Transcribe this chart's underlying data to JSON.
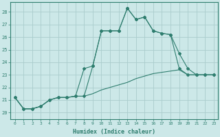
{
  "xlabel": "Humidex (Indice chaleur)",
  "xlim": [
    -0.5,
    23.5
  ],
  "ylim": [
    19.5,
    28.8
  ],
  "xticks": [
    0,
    1,
    2,
    3,
    4,
    5,
    6,
    7,
    8,
    9,
    10,
    11,
    12,
    13,
    14,
    15,
    16,
    17,
    18,
    19,
    20,
    21,
    22,
    23
  ],
  "yticks": [
    20,
    21,
    22,
    23,
    24,
    25,
    26,
    27,
    28
  ],
  "background_color": "#cce8e8",
  "grid_color": "#aacccc",
  "line_color": "#2e7d6e",
  "line1_y": [
    21.2,
    20.3,
    20.3,
    20.5,
    21.0,
    21.2,
    21.2,
    21.3,
    21.3,
    23.7,
    26.5,
    26.5,
    26.5,
    28.3,
    27.4,
    27.6,
    26.5,
    26.3,
    26.2,
    24.7,
    23.5,
    23.0,
    23.0,
    23.0
  ],
  "line2_y": [
    21.2,
    20.3,
    20.3,
    20.5,
    21.0,
    21.2,
    21.2,
    21.3,
    23.5,
    23.7,
    26.5,
    26.5,
    26.5,
    28.3,
    27.4,
    27.6,
    26.5,
    26.3,
    26.2,
    23.5,
    23.0,
    23.0,
    23.0,
    23.0
  ],
  "line3_y": [
    21.2,
    20.3,
    20.3,
    20.5,
    21.0,
    21.2,
    21.2,
    21.3,
    21.3,
    21.5,
    21.8,
    22.0,
    22.2,
    22.4,
    22.7,
    22.9,
    23.1,
    23.2,
    23.3,
    23.4,
    23.0,
    23.0,
    23.0,
    23.0
  ]
}
